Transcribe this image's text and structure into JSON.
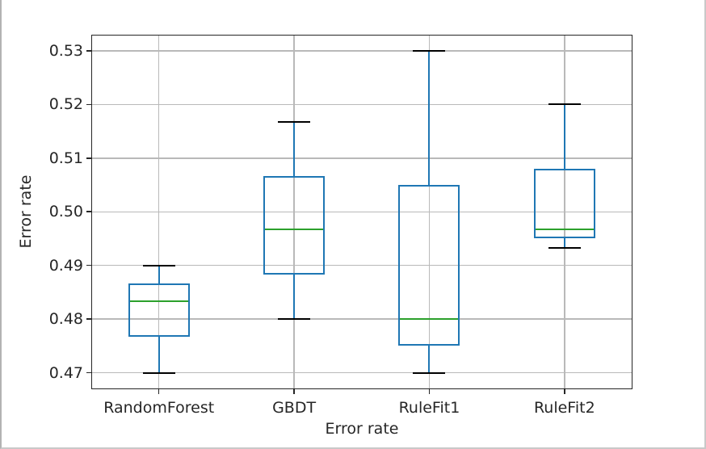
{
  "chart_data": {
    "type": "box",
    "title": "",
    "xlabel": "Error rate",
    "ylabel": "Error rate",
    "categories": [
      "RandomForest",
      "GBDT",
      "RuleFit1",
      "RuleFit2"
    ],
    "ylim": [
      0.467,
      0.533
    ],
    "yticks": [
      0.47,
      0.48,
      0.49,
      0.5,
      0.51,
      0.52,
      0.53
    ],
    "ytick_labels": [
      "0.47",
      "0.48",
      "0.49",
      "0.50",
      "0.51",
      "0.52",
      "0.53"
    ],
    "grid": true,
    "legend_position": "none",
    "boxes": [
      {
        "category": "RandomForest",
        "whisker_low": 0.47,
        "q1": 0.47667,
        "median": 0.48333,
        "q3": 0.48667,
        "whisker_high": 0.49
      },
      {
        "category": "GBDT",
        "whisker_low": 0.48,
        "q1": 0.48833,
        "median": 0.49667,
        "q3": 0.50667,
        "whisker_high": 0.51667
      },
      {
        "category": "RuleFit1",
        "whisker_low": 0.47,
        "q1": 0.475,
        "median": 0.48,
        "q3": 0.505,
        "whisker_high": 0.53
      },
      {
        "category": "RuleFit2",
        "whisker_low": 0.49333,
        "q1": 0.495,
        "median": 0.49667,
        "q3": 0.508,
        "whisker_high": 0.52
      }
    ],
    "colors": {
      "box_edge": "#1f77b4",
      "whisker": "#1f77b4",
      "median": "#2ca02c",
      "cap": "#000000",
      "grid": "#b9b9b9",
      "spine": "#262626",
      "text": "#262626"
    }
  }
}
